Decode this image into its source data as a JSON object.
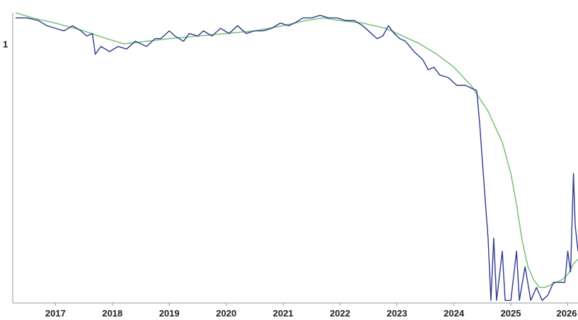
{
  "chart_data": {
    "type": "line",
    "title": "",
    "xlabel": "",
    "ylabel": "",
    "x_ticks": [
      "2017",
      "2018",
      "2019",
      "2020",
      "2021",
      "2022",
      "2023",
      "2024",
      "2025",
      "2026"
    ],
    "y_ticks": [
      {
        "value": 1,
        "label": "1"
      }
    ],
    "xlim": [
      2016.25,
      2026.18
    ],
    "ylim": [
      0,
      1.12
    ],
    "grid": false,
    "legend": "none",
    "colors": {
      "series": "#2e3a8c",
      "smoothed": "#7dc47d",
      "axis": "#999999"
    },
    "series": [
      {
        "points": [
          [
            2016.3,
            1.1
          ],
          [
            2016.5,
            1.1
          ],
          [
            2016.7,
            1.09
          ],
          [
            2016.85,
            1.07
          ],
          [
            2017.0,
            1.06
          ],
          [
            2017.15,
            1.05
          ],
          [
            2017.3,
            1.07
          ],
          [
            2017.45,
            1.05
          ],
          [
            2017.55,
            1.03
          ],
          [
            2017.65,
            1.04
          ],
          [
            2017.7,
            0.96
          ],
          [
            2017.8,
            0.99
          ],
          [
            2017.95,
            0.97
          ],
          [
            2018.1,
            0.99
          ],
          [
            2018.25,
            0.98
          ],
          [
            2018.4,
            1.01
          ],
          [
            2018.5,
            1.0
          ],
          [
            2018.6,
            0.99
          ],
          [
            2018.75,
            1.02
          ],
          [
            2018.85,
            1.02
          ],
          [
            2019.0,
            1.05
          ],
          [
            2019.1,
            1.03
          ],
          [
            2019.25,
            1.01
          ],
          [
            2019.35,
            1.04
          ],
          [
            2019.5,
            1.03
          ],
          [
            2019.6,
            1.05
          ],
          [
            2019.75,
            1.03
          ],
          [
            2019.9,
            1.06
          ],
          [
            2020.05,
            1.04
          ],
          [
            2020.2,
            1.07
          ],
          [
            2020.35,
            1.04
          ],
          [
            2020.5,
            1.05
          ],
          [
            2020.65,
            1.05
          ],
          [
            2020.8,
            1.06
          ],
          [
            2020.95,
            1.08
          ],
          [
            2021.1,
            1.07
          ],
          [
            2021.2,
            1.08
          ],
          [
            2021.35,
            1.1
          ],
          [
            2021.5,
            1.1
          ],
          [
            2021.65,
            1.11
          ],
          [
            2021.8,
            1.1
          ],
          [
            2021.95,
            1.1
          ],
          [
            2022.1,
            1.09
          ],
          [
            2022.25,
            1.09
          ],
          [
            2022.4,
            1.07
          ],
          [
            2022.55,
            1.04
          ],
          [
            2022.65,
            1.02
          ],
          [
            2022.75,
            1.03
          ],
          [
            2022.85,
            1.07
          ],
          [
            2022.95,
            1.04
          ],
          [
            2023.05,
            1.02
          ],
          [
            2023.15,
            1.01
          ],
          [
            2023.3,
            0.97
          ],
          [
            2023.45,
            0.94
          ],
          [
            2023.55,
            0.9
          ],
          [
            2023.65,
            0.91
          ],
          [
            2023.75,
            0.88
          ],
          [
            2023.9,
            0.87
          ],
          [
            2024.05,
            0.84
          ],
          [
            2024.2,
            0.84
          ],
          [
            2024.3,
            0.83
          ],
          [
            2024.4,
            0.82
          ],
          [
            2024.45,
            0.7
          ],
          [
            2024.5,
            0.55
          ],
          [
            2024.55,
            0.4
          ],
          [
            2024.6,
            0.25
          ],
          [
            2024.65,
            0.01
          ],
          [
            2024.7,
            0.25
          ],
          [
            2024.75,
            0.01
          ],
          [
            2024.85,
            0.2
          ],
          [
            2024.9,
            0.01
          ],
          [
            2025.0,
            0.01
          ],
          [
            2025.1,
            0.2
          ],
          [
            2025.15,
            0.01
          ],
          [
            2025.25,
            0.14
          ],
          [
            2025.35,
            0.01
          ],
          [
            2025.45,
            0.06
          ],
          [
            2025.55,
            0.01
          ],
          [
            2025.65,
            0.03
          ],
          [
            2025.75,
            0.08
          ],
          [
            2025.85,
            0.08
          ],
          [
            2025.95,
            0.08
          ],
          [
            2026.0,
            0.2
          ],
          [
            2026.05,
            0.12
          ],
          [
            2026.1,
            0.5
          ],
          [
            2026.13,
            0.3
          ],
          [
            2026.18,
            0.2
          ]
        ]
      },
      {
        "points": [
          [
            2016.3,
            1.12
          ],
          [
            2016.6,
            1.1
          ],
          [
            2017.0,
            1.08
          ],
          [
            2017.5,
            1.05
          ],
          [
            2017.9,
            1.02
          ],
          [
            2018.2,
            1.0
          ],
          [
            2018.6,
            1.01
          ],
          [
            2019.0,
            1.02
          ],
          [
            2019.5,
            1.03
          ],
          [
            2020.0,
            1.04
          ],
          [
            2020.5,
            1.05
          ],
          [
            2021.0,
            1.07
          ],
          [
            2021.4,
            1.09
          ],
          [
            2021.7,
            1.1
          ],
          [
            2022.0,
            1.09
          ],
          [
            2022.4,
            1.08
          ],
          [
            2022.8,
            1.06
          ],
          [
            2023.1,
            1.03
          ],
          [
            2023.4,
            1.0
          ],
          [
            2023.7,
            0.96
          ],
          [
            2024.0,
            0.91
          ],
          [
            2024.3,
            0.84
          ],
          [
            2024.6,
            0.74
          ],
          [
            2024.85,
            0.62
          ],
          [
            2025.0,
            0.5
          ],
          [
            2025.1,
            0.38
          ],
          [
            2025.2,
            0.24
          ],
          [
            2025.3,
            0.14
          ],
          [
            2025.4,
            0.09
          ],
          [
            2025.5,
            0.06
          ],
          [
            2025.6,
            0.06
          ],
          [
            2025.7,
            0.07
          ],
          [
            2025.8,
            0.08
          ],
          [
            2025.9,
            0.09
          ],
          [
            2026.0,
            0.11
          ],
          [
            2026.1,
            0.15
          ],
          [
            2026.18,
            0.17
          ]
        ]
      }
    ]
  }
}
